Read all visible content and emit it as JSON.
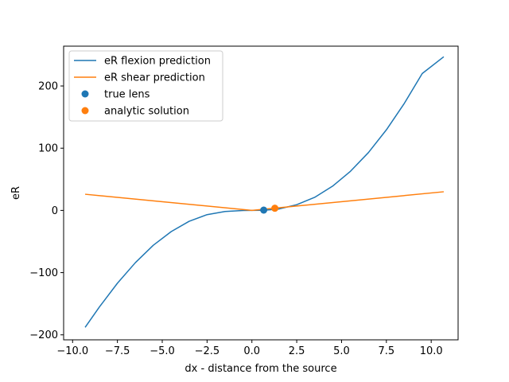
{
  "chart_data": {
    "type": "line",
    "xlabel": "dx - distance from the source",
    "ylabel": "eR",
    "xlim": [
      -10.5,
      11.5
    ],
    "ylim": [
      -208,
      264
    ],
    "x_ticks": [
      -10,
      -7.5,
      -5,
      -2.5,
      0,
      2.5,
      5,
      7.5,
      10
    ],
    "x_tick_labels": [
      "−10.0",
      "−7.5",
      "−5.0",
      "−2.5",
      "0.0",
      "2.5",
      "5.0",
      "7.5",
      "10.0"
    ],
    "y_ticks": [
      -200,
      -100,
      0,
      100,
      200
    ],
    "y_tick_labels": [
      "−200",
      "−100",
      "0",
      "100",
      "200"
    ],
    "grid": false,
    "legend_position": "top-left",
    "series": [
      {
        "name": "eR flexion prediction",
        "type": "line",
        "color": "#1f77b4",
        "x": [
          -9.3,
          -8.5,
          -7.5,
          -6.5,
          -5.5,
          -4.5,
          -3.5,
          -2.5,
          -1.5,
          -0.5,
          0.0,
          0.66,
          1.5,
          2.5,
          3.5,
          4.5,
          5.5,
          6.5,
          7.5,
          8.5,
          9.5,
          10.7
        ],
        "y": [
          -188,
          -155,
          -117,
          -84,
          -56,
          -34,
          -17.5,
          -6.8,
          -1.7,
          -0.1,
          0.0,
          0.2,
          2.3,
          9.2,
          21.0,
          39.0,
          63.0,
          93.0,
          129.5,
          172.0,
          220.0,
          247.0
        ]
      },
      {
        "name": "eR shear prediction",
        "type": "line",
        "color": "#ff7f0e",
        "x": [
          -9.3,
          0.0,
          10.7
        ],
        "y": [
          26.0,
          0.0,
          30.0
        ]
      },
      {
        "name": "true lens",
        "type": "scatter",
        "color": "#1f77b4",
        "x": [
          0.66
        ],
        "y": [
          0.5
        ]
      },
      {
        "name": "analytic solution",
        "type": "scatter",
        "color": "#ff7f0e",
        "x": [
          1.28
        ],
        "y": [
          3.5
        ]
      }
    ]
  }
}
